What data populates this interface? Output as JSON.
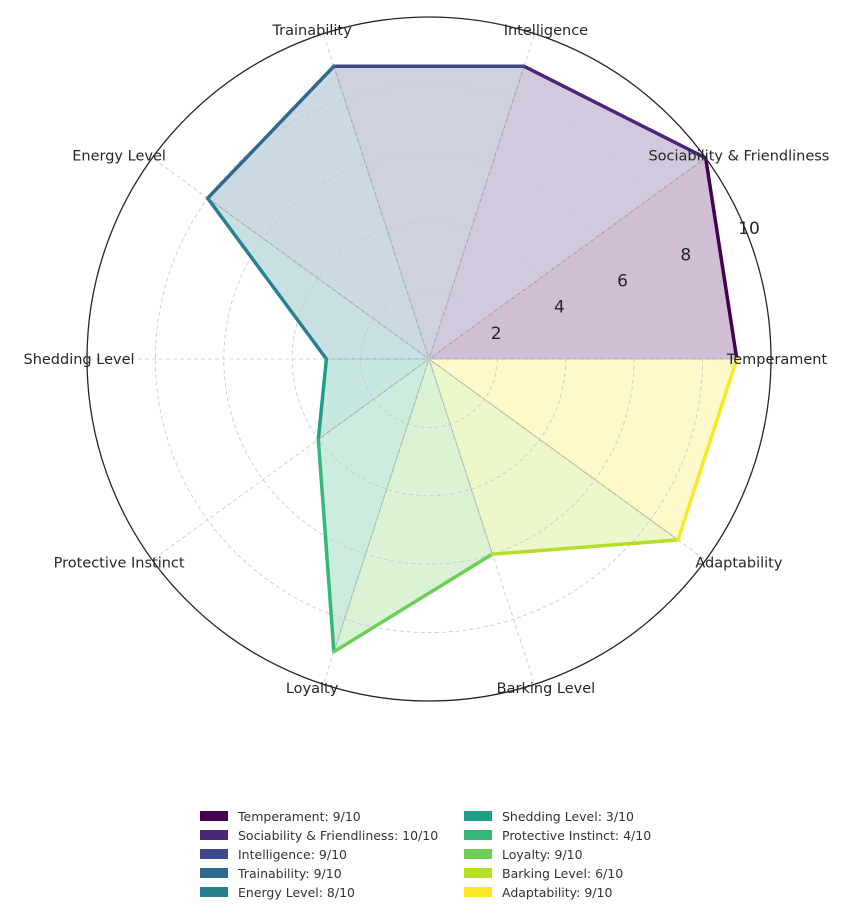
{
  "chart_data": {
    "type": "radar",
    "title": "",
    "categories": [
      "Temperament",
      "Sociability & Friendliness",
      "Intelligence",
      "Trainability",
      "Energy Level",
      "Shedding Level",
      "Protective Instinct",
      "Loyalty",
      "Barking Level",
      "Adaptability"
    ],
    "values": [
      9,
      10,
      9,
      9,
      8,
      3,
      4,
      9,
      6,
      9
    ],
    "colors": [
      "#440154",
      "#482878",
      "#3e4989",
      "#31688e",
      "#26828e",
      "#1f9e89",
      "#35b779",
      "#6ece58",
      "#b5de2b",
      "#fde725"
    ],
    "rlim": [
      0,
      10
    ],
    "rticks": [
      "2",
      "4",
      "6",
      "8",
      "10"
    ],
    "rtick_values": [
      2,
      4,
      6,
      8,
      10
    ],
    "grid": true,
    "legend": {
      "position": "bottom",
      "entries": [
        "Temperament: 9/10",
        "Sociability & Friendliness: 10/10",
        "Intelligence: 9/10",
        "Trainability: 9/10",
        "Energy Level: 8/10",
        "Shedding Level: 3/10",
        "Protective Instinct: 4/10",
        "Loyalty: 9/10",
        "Barking Level: 6/10",
        "Adaptability: 9/10"
      ]
    }
  }
}
